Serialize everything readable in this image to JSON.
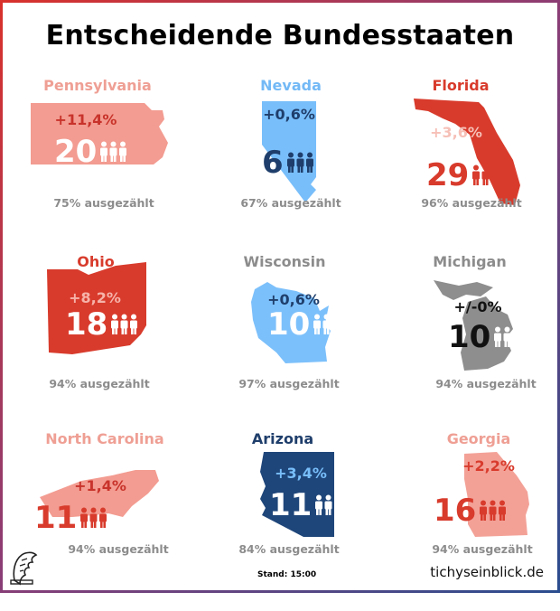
{
  "title": "Entscheidende Bundesstaaten",
  "states": [
    {
      "name": "Pennsylvania",
      "change": "+11,4%",
      "electors": "20",
      "counted": "75% ausgezählt",
      "colors": {
        "name": "#ef9f94",
        "shape": "#f39c91",
        "change": "#c8332b",
        "votes": "#ffffff",
        "people": "#ffffff"
      }
    },
    {
      "name": "Nevada",
      "change": "+0,6%",
      "electors": "6",
      "counted": "67% ausgezählt",
      "colors": {
        "name": "#73b9f6",
        "shape": "#78befa",
        "change": "#1f3e6b",
        "votes": "#1f3e6b",
        "people": "#1f3e6b"
      }
    },
    {
      "name": "Florida",
      "change": "+3,6%",
      "electors": "29",
      "counted": "96% ausgezählt",
      "colors": {
        "name": "#d83b2c",
        "shape": "#d83b2c",
        "change": "#f6c0b7",
        "votes": "#d83b2c",
        "people": "#d83b2c"
      }
    },
    {
      "name": "Ohio",
      "change": "+8,2%",
      "electors": "18",
      "counted": "94% ausgezählt",
      "colors": {
        "name": "#d83b2c",
        "shape": "#d83b2c",
        "change": "#f6b3aa",
        "votes": "#ffffff",
        "people": "#ffffff"
      }
    },
    {
      "name": "Wisconsin",
      "change": "+0,6%",
      "electors": "10",
      "counted": "97% ausgezählt",
      "colors": {
        "name": "#8c8c8c",
        "shape": "#7cc0fb",
        "change": "#1f3e6b",
        "votes": "#ffffff",
        "people": "#ffffff"
      }
    },
    {
      "name": "Michigan",
      "change": "+/-0%",
      "electors": "10",
      "counted": "94% ausgezählt",
      "colors": {
        "name": "#8c8c8c",
        "shape": "#8e8e8e",
        "change": "#111111",
        "votes": "#111111",
        "people": "#ffffff"
      }
    },
    {
      "name": "North Carolina",
      "change": "+1,4%",
      "electors": "11",
      "counted": "94% ausgezählt",
      "colors": {
        "name": "#ef9f94",
        "shape": "#f39c91",
        "change": "#c8332b",
        "votes": "#d83b2c",
        "people": "#d83b2c"
      }
    },
    {
      "name": "Arizona",
      "change": "+3,4%",
      "electors": "11",
      "counted": "84% ausgezählt",
      "colors": {
        "name": "#1f3e6b",
        "shape": "#1f467a",
        "change": "#78befa",
        "votes": "#ffffff",
        "people": "#ffffff"
      }
    },
    {
      "name": "Georgia",
      "change": "+2,2%",
      "electors": "16",
      "counted": "94% ausgezählt",
      "colors": {
        "name": "#ef9f94",
        "shape": "#f3a197",
        "change": "#d83b2c",
        "votes": "#d83b2c",
        "people": "#d83b2c"
      }
    }
  ],
  "footer": {
    "stand": "Stand: 15:00",
    "brand": "tichyseinblick.de"
  }
}
